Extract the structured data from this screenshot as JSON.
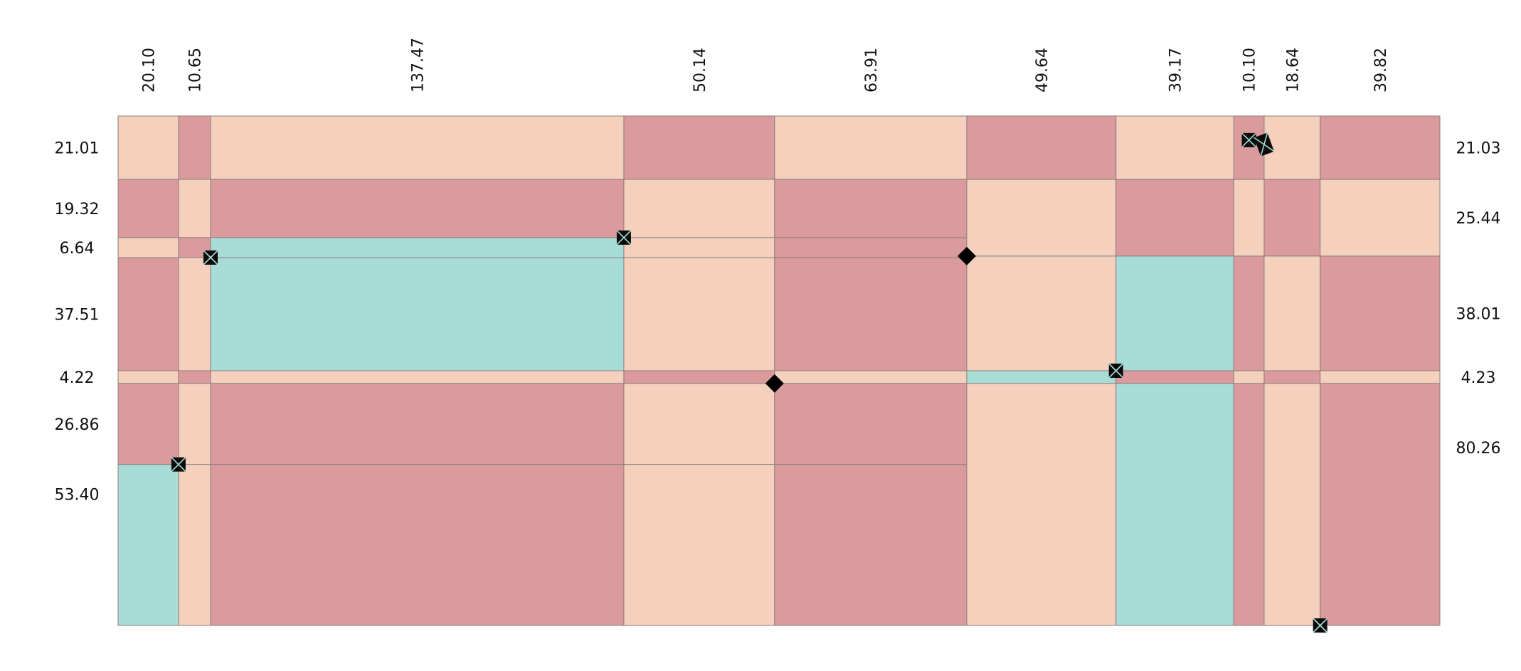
{
  "colors": {
    "background": "#ffffff",
    "rose": "#db9a9b",
    "peach": "#f4d0bd",
    "teal": "#a8dcd6",
    "cell_border": "#8a7f7f",
    "marker": "#000000"
  },
  "chart_data": {
    "type": "heatmap",
    "title": "",
    "xlabel": "",
    "ylabel": "",
    "legend": "none",
    "grid": false,
    "columns": [
      {
        "label": "20.10",
        "value": 20.1
      },
      {
        "label": "10.65",
        "value": 10.65
      },
      {
        "label": "137.47",
        "value": 137.47
      },
      {
        "label": "50.14",
        "value": 50.14
      },
      {
        "label": "63.91",
        "value": 63.91
      },
      {
        "label": "49.64",
        "value": 49.64
      },
      {
        "label": "39.17",
        "value": 39.17
      },
      {
        "label": "10.10",
        "value": 10.1
      },
      {
        "label": "18.64",
        "value": 18.64
      },
      {
        "label": "39.82",
        "value": 39.82
      }
    ],
    "left_rows": [
      {
        "label": "21.01",
        "value": 21.01
      },
      {
        "label": "19.32",
        "value": 19.32
      },
      {
        "label": "6.64",
        "value": 6.64
      },
      {
        "label": "37.51",
        "value": 37.51
      },
      {
        "label": "4.22",
        "value": 4.22
      },
      {
        "label": "26.86",
        "value": 26.86
      },
      {
        "label": "53.40",
        "value": 53.4
      }
    ],
    "right_rows": [
      {
        "label": "21.03",
        "value": 21.03
      },
      {
        "label": "25.44",
        "value": 25.44
      },
      {
        "label": "38.01",
        "value": 38.01
      },
      {
        "label": "4.23",
        "value": 4.23
      },
      {
        "label": "80.26",
        "value": 80.26
      }
    ],
    "column_row_sets": [
      "left",
      "left",
      "left",
      "left",
      "left",
      "right",
      "right",
      "right",
      "right",
      "right"
    ],
    "cells": [
      [
        "peach",
        "rose",
        "peach",
        "rose",
        "peach",
        "rose",
        "teal"
      ],
      [
        "rose",
        "peach",
        "rose",
        "peach",
        "rose",
        "peach",
        "peach"
      ],
      [
        "peach",
        "rose",
        "teal",
        "teal",
        "peach",
        "rose",
        "rose"
      ],
      [
        "rose",
        "peach",
        "peach",
        "peach",
        "rose",
        "peach",
        "peach"
      ],
      [
        "peach",
        "rose",
        "rose",
        "rose",
        "peach",
        "rose",
        "rose"
      ],
      [
        "rose",
        "peach",
        "peach",
        "teal",
        "peach"
      ],
      [
        "peach",
        "rose",
        "teal",
        "rose",
        "teal"
      ],
      [
        "rose",
        "peach",
        "rose",
        "peach",
        "rose"
      ],
      [
        "peach",
        "rose",
        "peach",
        "rose",
        "peach"
      ],
      [
        "rose",
        "peach",
        "rose",
        "peach",
        "rose"
      ]
    ],
    "markers": [
      {
        "style": "box",
        "after_column": 0,
        "after_row": 5,
        "row_set": "left"
      },
      {
        "style": "box",
        "after_column": 1,
        "after_row": 2,
        "row_set": "left"
      },
      {
        "style": "box",
        "after_column": 2,
        "after_row": 1,
        "row_set": "left"
      },
      {
        "style": "diamond",
        "after_column": 3,
        "after_row": 4,
        "row_set": "left"
      },
      {
        "style": "diamond",
        "after_column": 4,
        "after_row": 1,
        "row_set": "right"
      },
      {
        "style": "box",
        "after_column": 5,
        "after_row": 2,
        "row_set": "right"
      },
      {
        "style": "box",
        "column": 7,
        "row_fraction": 0.38,
        "row_set": "right"
      },
      {
        "style": "box",
        "after_column": 7,
        "row_fraction": 0.45,
        "row_set": "right",
        "tall": true
      },
      {
        "style": "box",
        "after_column": 8,
        "after_row": 4,
        "row_set": "right"
      }
    ]
  }
}
